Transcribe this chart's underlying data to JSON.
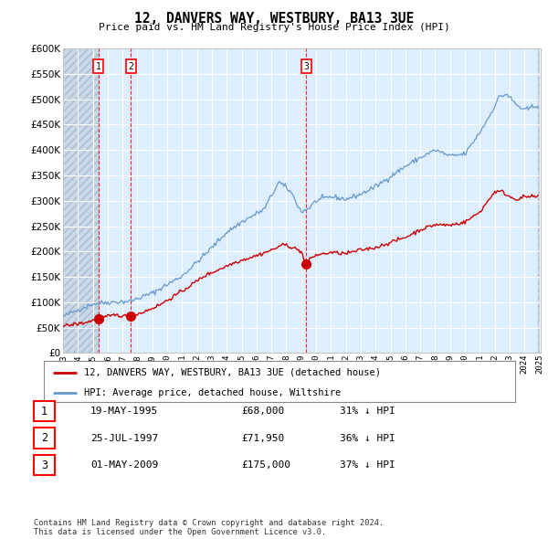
{
  "title": "12, DANVERS WAY, WESTBURY, BA13 3UE",
  "subtitle": "Price paid vs. HM Land Registry's House Price Index (HPI)",
  "ylim": [
    0,
    600000
  ],
  "yticks": [
    0,
    50000,
    100000,
    150000,
    200000,
    250000,
    300000,
    350000,
    400000,
    450000,
    500000,
    550000,
    600000
  ],
  "sales": [
    {
      "date": 1995.38,
      "price": 68000,
      "label": "1"
    },
    {
      "date": 1997.56,
      "price": 71950,
      "label": "2"
    },
    {
      "date": 2009.33,
      "price": 175000,
      "label": "3"
    }
  ],
  "legend_house": "12, DANVERS WAY, WESTBURY, BA13 3UE (detached house)",
  "legend_hpi": "HPI: Average price, detached house, Wiltshire",
  "table": [
    {
      "num": "1",
      "date": "19-MAY-1995",
      "price": "£68,000",
      "pct": "31% ↓ HPI"
    },
    {
      "num": "2",
      "date": "25-JUL-1997",
      "price": "£71,950",
      "pct": "36% ↓ HPI"
    },
    {
      "num": "3",
      "date": "01-MAY-2009",
      "price": "£175,000",
      "pct": "37% ↓ HPI"
    }
  ],
  "footer": "Contains HM Land Registry data © Crown copyright and database right 2024.\nThis data is licensed under the Open Government Licence v3.0.",
  "house_color": "#cc0000",
  "hpi_color": "#6699cc",
  "plot_bg": "#ddeeff",
  "hatch_bg": "#e8e8e8"
}
